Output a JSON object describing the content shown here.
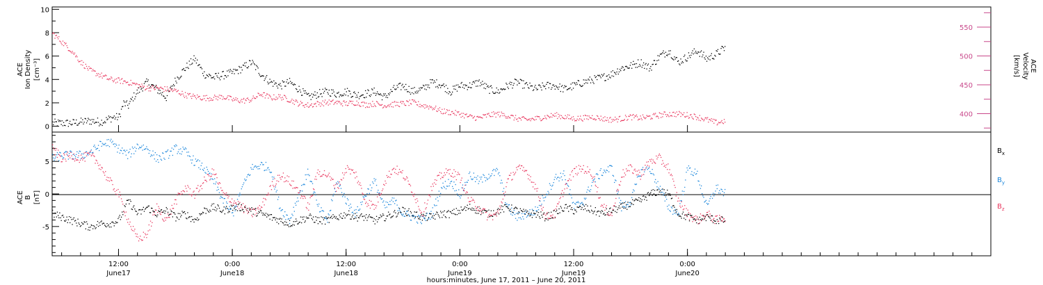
{
  "colors": {
    "black": "#000000",
    "pink": "#e8365d",
    "blue": "#1a86db",
    "axis_right": "#c8478a"
  },
  "x_axis": {
    "title": "hours:minutes, June 17, 2011 – June 20, 2011",
    "domain_hours": [
      5,
      104
    ],
    "ticks": [
      {
        "hour": 12,
        "time": "12:00",
        "date": "June17"
      },
      {
        "hour": 24,
        "time": "0:00",
        "date": "June18"
      },
      {
        "hour": 36,
        "time": "12:00",
        "date": "June18"
      },
      {
        "hour": 48,
        "time": "0:00",
        "date": "June19"
      },
      {
        "hour": 60,
        "time": "12:00",
        "date": "June19"
      },
      {
        "hour": 72,
        "time": "0:00",
        "date": "June20"
      }
    ]
  },
  "top_panel": {
    "left_label_1": "ACE",
    "left_label_2": "Ion Density",
    "left_label_3": "[cm⁻³]",
    "right_label_1": "ACE",
    "right_label_2": "Velocity",
    "right_label_3": "[km/s]"
  },
  "bottom_panel": {
    "left_label_1": "ACE",
    "left_label_2": "B",
    "left_label_3": "[nT]",
    "legend": [
      {
        "name": "Bx",
        "base": "B",
        "sub": "x",
        "color": "#000000"
      },
      {
        "name": "By",
        "base": "B",
        "sub": "y",
        "color": "#1a86db"
      },
      {
        "name": "Bz",
        "base": "B",
        "sub": "z",
        "color": "#e8365d"
      }
    ]
  },
  "chart_data": [
    {
      "type": "scatter",
      "title": "",
      "xlabel": "hours:minutes, June 17, 2011 – June 20, 2011",
      "ylabel": "ACE Ion Density [cm⁻³]",
      "ylim": [
        -0.5,
        10.2
      ],
      "yticks": [
        0,
        2,
        4,
        6,
        8,
        10
      ],
      "series": [
        {
          "name": "Ion Density",
          "axis": "left",
          "color": "#000000",
          "x": [
            5,
            6,
            7,
            8,
            9,
            10,
            10.5,
            11,
            11.5,
            12,
            12.5,
            13,
            13.5,
            14,
            15,
            16,
            17,
            18,
            19,
            20,
            21,
            22,
            23,
            24,
            25,
            26,
            27,
            28,
            29,
            30,
            31,
            32,
            33,
            34,
            35,
            36,
            37,
            38,
            39,
            40,
            41,
            42,
            43,
            44,
            45,
            46,
            47,
            48,
            49,
            50,
            51,
            52,
            53,
            54,
            55,
            56,
            57,
            58,
            59,
            60,
            61,
            62,
            63,
            64,
            65,
            66,
            67,
            68,
            69,
            70,
            71,
            72,
            73,
            74,
            75,
            76
          ],
          "y": [
            0.3,
            0.3,
            0.3,
            0.4,
            0.5,
            0.4,
            0.5,
            0.7,
            0.8,
            0.8,
            2.0,
            1.8,
            2.5,
            3.0,
            3.8,
            3.2,
            2.5,
            4.0,
            5.0,
            5.8,
            4.5,
            4.2,
            4.4,
            4.6,
            5.0,
            5.5,
            4.5,
            3.8,
            3.5,
            3.8,
            3.2,
            2.5,
            2.8,
            3.0,
            2.8,
            3.0,
            2.7,
            2.8,
            3.0,
            2.5,
            3.2,
            3.5,
            3.0,
            3.2,
            3.8,
            3.6,
            3.0,
            3.5,
            3.5,
            3.8,
            3.2,
            3.0,
            3.5,
            3.8,
            3.5,
            3.2,
            3.5,
            3.5,
            3.2,
            3.5,
            3.8,
            4.0,
            4.2,
            4.5,
            5.0,
            5.2,
            5.5,
            5.0,
            6.0,
            6.5,
            5.5,
            6.0,
            6.5,
            5.8,
            6.2,
            6.8
          ]
        },
        {
          "name": "Velocity",
          "axis": "right",
          "ylim": [
            368,
            585
          ],
          "yticks": [
            400,
            450,
            500,
            550
          ],
          "color": "#e8365d",
          "x": [
            5,
            6,
            7,
            8,
            9,
            10,
            11,
            12,
            13,
            14,
            15,
            16,
            17,
            18,
            19,
            20,
            21,
            22,
            23,
            24,
            25,
            26,
            27,
            28,
            29,
            30,
            31,
            32,
            33,
            34,
            35,
            36,
            37,
            38,
            39,
            40,
            41,
            42,
            43,
            44,
            45,
            46,
            47,
            48,
            49,
            50,
            51,
            52,
            53,
            54,
            55,
            56,
            57,
            58,
            59,
            60,
            61,
            62,
            63,
            64,
            65,
            66,
            67,
            68,
            69,
            70,
            71,
            72,
            73,
            74,
            75,
            76
          ],
          "y": [
            540,
            525,
            510,
            490,
            475,
            468,
            460,
            458,
            455,
            450,
            445,
            445,
            443,
            440,
            433,
            430,
            428,
            428,
            430,
            425,
            423,
            425,
            435,
            428,
            430,
            425,
            418,
            415,
            418,
            420,
            420,
            418,
            420,
            416,
            418,
            415,
            417,
            418,
            420,
            415,
            412,
            405,
            403,
            400,
            395,
            393,
            398,
            400,
            397,
            392,
            390,
            392,
            395,
            398,
            395,
            392,
            393,
            395,
            392,
            390,
            392,
            395,
            393,
            395,
            398,
            400,
            400,
            398,
            395,
            390,
            385,
            388
          ]
        }
      ]
    },
    {
      "type": "scatter",
      "title": "",
      "xlabel": "hours:minutes, June 17, 2011 – June 20, 2011",
      "ylabel": "ACE B [nT]",
      "ylim": [
        -9.5,
        9.5
      ],
      "yticks": [
        -5,
        0,
        5
      ],
      "series": [
        {
          "name": "Bx",
          "color": "#000000",
          "x": [
            5,
            6,
            7,
            8,
            9,
            10,
            11,
            12,
            13,
            14,
            15,
            16,
            17,
            18,
            19,
            20,
            21,
            22,
            23,
            24,
            25,
            26,
            27,
            28,
            29,
            30,
            31,
            32,
            33,
            34,
            35,
            36,
            37,
            38,
            39,
            40,
            41,
            42,
            43,
            44,
            45,
            46,
            47,
            48,
            49,
            50,
            51,
            52,
            53,
            54,
            55,
            56,
            57,
            58,
            59,
            60,
            61,
            62,
            63,
            64,
            65,
            66,
            67,
            68,
            69,
            70,
            71,
            72,
            73,
            74,
            75,
            76
          ],
          "y": [
            -3.0,
            -3.5,
            -4.0,
            -4.5,
            -5.0,
            -4.5,
            -4.5,
            -4.0,
            -1.0,
            -3.0,
            -2.0,
            -3.0,
            -2.5,
            -3.5,
            -3.0,
            -4.0,
            -2.5,
            -2.0,
            -2.5,
            -2.0,
            -2.0,
            -2.5,
            -3.0,
            -3.5,
            -4.0,
            -4.5,
            -4.0,
            -3.5,
            -4.0,
            -4.0,
            -3.5,
            -3.0,
            -3.5,
            -3.5,
            -4.0,
            -3.5,
            -3.0,
            -2.5,
            -3.0,
            -3.5,
            -3.5,
            -3.0,
            -3.0,
            -2.5,
            -2.0,
            -2.5,
            -3.0,
            -2.5,
            -2.0,
            -2.5,
            -3.0,
            -3.0,
            -3.5,
            -3.0,
            -2.0,
            -2.5,
            -2.0,
            -2.5,
            -3.0,
            -2.5,
            -2.0,
            -1.5,
            -1.0,
            0.0,
            0.5,
            0.0,
            -3.0,
            -3.5,
            -4.0,
            -3.5,
            -4.0,
            -4.0
          ]
        },
        {
          "name": "By",
          "color": "#1a86db",
          "x": [
            5,
            6,
            7,
            8,
            9,
            10,
            11,
            12,
            13,
            14,
            15,
            16,
            17,
            18,
            19,
            20,
            21,
            22,
            23,
            24,
            25,
            26,
            27,
            28,
            29,
            30,
            31,
            32,
            33,
            34,
            35,
            36,
            37,
            38,
            39,
            40,
            41,
            42,
            43,
            44,
            45,
            46,
            47,
            48,
            49,
            50,
            51,
            52,
            53,
            54,
            55,
            56,
            57,
            58,
            59,
            60,
            61,
            62,
            63,
            64,
            65,
            66,
            67,
            68,
            69,
            70,
            71,
            72,
            73,
            74,
            75,
            76
          ],
          "y": [
            5.5,
            6.0,
            6.0,
            6.0,
            6.5,
            7.5,
            8.0,
            7.0,
            6.0,
            7.5,
            7.0,
            5.5,
            6.0,
            7.0,
            6.5,
            5.0,
            4.0,
            2.0,
            -1.0,
            -3.0,
            1.0,
            4.0,
            4.5,
            4.0,
            -2.0,
            -4.0,
            0.0,
            3.5,
            -2.0,
            -4.0,
            2.0,
            -1.0,
            -3.0,
            0.0,
            2.0,
            -2.0,
            -1.0,
            -3.0,
            -3.5,
            -4.0,
            -3.0,
            1.0,
            2.0,
            0.0,
            3.0,
            2.0,
            3.0,
            3.5,
            -2.0,
            -3.5,
            -3.0,
            -2.5,
            0.0,
            2.5,
            3.0,
            -2.0,
            -1.0,
            2.0,
            3.5,
            4.0,
            -2.0,
            -1.0,
            3.5,
            4.0,
            1.0,
            -2.0,
            -3.0,
            4.0,
            3.0,
            -2.0,
            1.0,
            0.0
          ]
        },
        {
          "name": "Bz",
          "color": "#e8365d",
          "x": [
            5,
            6,
            7,
            8,
            9,
            10,
            11,
            12,
            13,
            14,
            15,
            16,
            17,
            18,
            19,
            20,
            21,
            22,
            23,
            24,
            25,
            26,
            27,
            28,
            29,
            30,
            31,
            32,
            33,
            34,
            35,
            36,
            37,
            38,
            39,
            40,
            41,
            42,
            43,
            44,
            45,
            46,
            47,
            48,
            49,
            50,
            51,
            52,
            53,
            54,
            55,
            56,
            57,
            58,
            59,
            60,
            61,
            62,
            63,
            64,
            65,
            66,
            67,
            68,
            69,
            70,
            71,
            72,
            73,
            74,
            75,
            76
          ],
          "y": [
            7.0,
            5.5,
            6.0,
            5.5,
            6.0,
            4.5,
            2.0,
            0.0,
            -4.0,
            -7.0,
            -6.0,
            -2.0,
            -4.0,
            -1.0,
            1.0,
            0.0,
            2.0,
            3.5,
            0.0,
            -1.0,
            -2.0,
            -3.0,
            -2.0,
            1.0,
            3.0,
            2.0,
            0.5,
            -2.0,
            3.5,
            3.0,
            1.0,
            4.0,
            3.0,
            -1.0,
            -2.0,
            2.0,
            4.0,
            3.0,
            0.5,
            -3.0,
            1.0,
            3.0,
            3.5,
            2.5,
            -1.0,
            -2.0,
            -3.5,
            -3.0,
            2.0,
            4.0,
            3.5,
            1.0,
            -3.5,
            -3.0,
            1.0,
            3.5,
            4.0,
            3.0,
            -2.0,
            -3.0,
            3.0,
            4.0,
            3.0,
            5.0,
            5.5,
            4.0,
            -1.0,
            -3.0,
            -4.0,
            -3.0,
            -4.0,
            -3.5
          ]
        }
      ]
    }
  ]
}
